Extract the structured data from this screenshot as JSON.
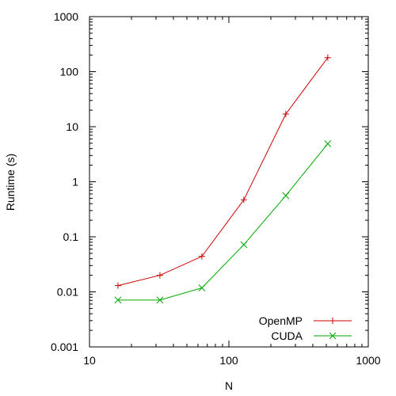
{
  "chart_data": {
    "type": "line",
    "xlabel": "N",
    "ylabel": "Runtime (s)",
    "xscale": "log",
    "yscale": "log",
    "xlim": [
      10,
      1000
    ],
    "ylim": [
      0.001,
      1000
    ],
    "xticks": [
      {
        "value": 10,
        "label": "10"
      },
      {
        "value": 100,
        "label": "100"
      },
      {
        "value": 1000,
        "label": "1000"
      }
    ],
    "yticks": [
      {
        "value": 0.001,
        "label": "0.001"
      },
      {
        "value": 0.01,
        "label": "0.01"
      },
      {
        "value": 0.1,
        "label": "0.1"
      },
      {
        "value": 1,
        "label": "1"
      },
      {
        "value": 10,
        "label": "10"
      },
      {
        "value": 100,
        "label": "100"
      },
      {
        "value": 1000,
        "label": "1000"
      }
    ],
    "grid": false,
    "legend": "bottom-right",
    "series": [
      {
        "name": "OpenMP",
        "color": "#cc0000",
        "marker": "plus",
        "x": [
          16,
          32,
          64,
          128,
          256,
          512
        ],
        "y": [
          0.013,
          0.02,
          0.044,
          0.47,
          17,
          180
        ]
      },
      {
        "name": "CUDA",
        "color": "#00aa00",
        "marker": "cross",
        "x": [
          16,
          32,
          64,
          128,
          256,
          512
        ],
        "y": [
          0.0071,
          0.0071,
          0.0118,
          0.072,
          0.56,
          4.9
        ]
      }
    ]
  }
}
